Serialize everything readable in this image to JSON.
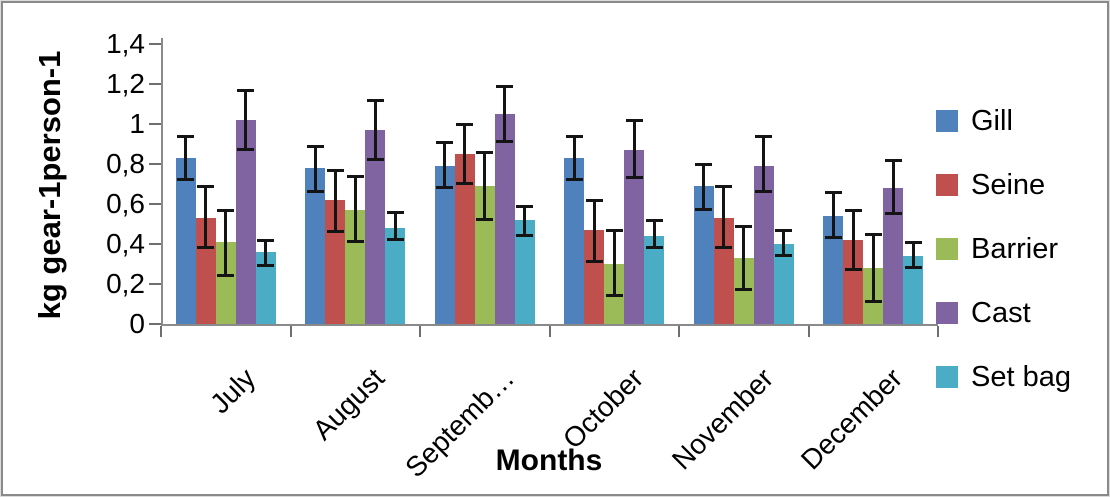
{
  "chart_data": {
    "type": "bar",
    "title": "",
    "xlabel": "Months",
    "ylabel": "kg gear-1person-1",
    "categories": [
      "July",
      "August",
      "Septemb…",
      "October",
      "November",
      "December"
    ],
    "y_ticks": [
      "0",
      "0,2",
      "0,4",
      "0,6",
      "0,8",
      "1",
      "1,2",
      "1,4"
    ],
    "y_tick_values": [
      0,
      0.2,
      0.4,
      0.6,
      0.8,
      1.0,
      1.2,
      1.4
    ],
    "ylim": [
      0,
      1.4
    ],
    "grid": false,
    "legend_position": "right",
    "error_bars": true,
    "series": [
      {
        "name": "Gill",
        "color": "#4F81BD",
        "values": [
          0.83,
          0.78,
          0.79,
          0.83,
          0.69,
          0.54
        ],
        "err_low": [
          0.72,
          0.66,
          0.68,
          0.72,
          0.57,
          0.43
        ],
        "err_high": [
          0.94,
          0.89,
          0.91,
          0.94,
          0.8,
          0.66
        ]
      },
      {
        "name": "Seine",
        "color": "#C0504D",
        "values": [
          0.53,
          0.62,
          0.85,
          0.47,
          0.53,
          0.42
        ],
        "err_low": [
          0.38,
          0.46,
          0.7,
          0.31,
          0.38,
          0.27
        ],
        "err_high": [
          0.69,
          0.77,
          1.0,
          0.62,
          0.69,
          0.57
        ]
      },
      {
        "name": "Barrier",
        "color": "#9BBB59",
        "values": [
          0.41,
          0.57,
          0.69,
          0.3,
          0.33,
          0.28
        ],
        "err_low": [
          0.24,
          0.41,
          0.52,
          0.14,
          0.17,
          0.11
        ],
        "err_high": [
          0.57,
          0.74,
          0.86,
          0.47,
          0.49,
          0.45
        ]
      },
      {
        "name": "Cast",
        "color": "#8064A2",
        "values": [
          1.02,
          0.97,
          1.05,
          0.87,
          0.79,
          0.68
        ],
        "err_low": [
          0.87,
          0.82,
          0.91,
          0.73,
          0.66,
          0.55
        ],
        "err_high": [
          1.17,
          1.12,
          1.19,
          1.02,
          0.94,
          0.82
        ]
      },
      {
        "name": "Set bag",
        "color": "#4BACC6",
        "values": [
          0.36,
          0.48,
          0.52,
          0.44,
          0.4,
          0.34
        ],
        "err_low": [
          0.29,
          0.42,
          0.44,
          0.38,
          0.34,
          0.28
        ],
        "err_high": [
          0.42,
          0.56,
          0.59,
          0.52,
          0.47,
          0.41
        ]
      }
    ]
  }
}
